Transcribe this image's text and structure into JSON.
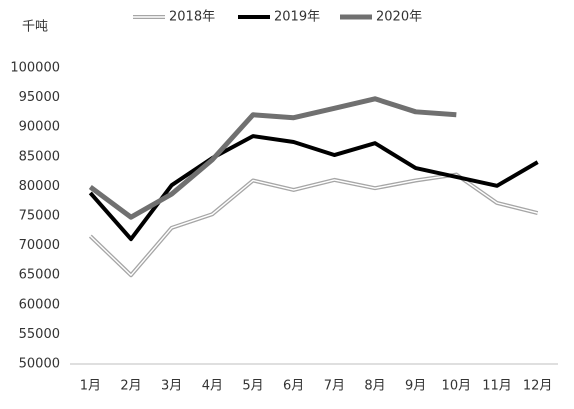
{
  "chart_data": {
    "type": "line",
    "y_label": "千吨",
    "categories": [
      "1月",
      "2月",
      "3月",
      "4月",
      "5月",
      "6月",
      "7月",
      "8月",
      "9月",
      "10月",
      "11月",
      "12月"
    ],
    "series": [
      {
        "name": "2018年",
        "color": "#a6a6a6",
        "style": "double",
        "values": [
          71600,
          65000,
          73000,
          75300,
          81000,
          79400,
          81100,
          79700,
          81000,
          82000,
          77200,
          75500
        ]
      },
      {
        "name": "2019年",
        "color": "#000000",
        "style": "solid",
        "values": [
          78900,
          71100,
          80200,
          84800,
          88500,
          87500,
          85300,
          87300,
          83100,
          81600,
          80100,
          84100
        ]
      },
      {
        "name": "2020年",
        "color": "#707070",
        "style": "solid",
        "values": [
          79900,
          74800,
          78700,
          84500,
          92100,
          91600,
          93200,
          94800,
          92600,
          92100,
          null,
          null
        ]
      }
    ],
    "ylim": [
      50000,
      100000
    ],
    "yticks": [
      50000,
      55000,
      60000,
      65000,
      70000,
      75000,
      80000,
      85000,
      90000,
      95000,
      100000
    ],
    "grid": false,
    "legend": "top"
  }
}
